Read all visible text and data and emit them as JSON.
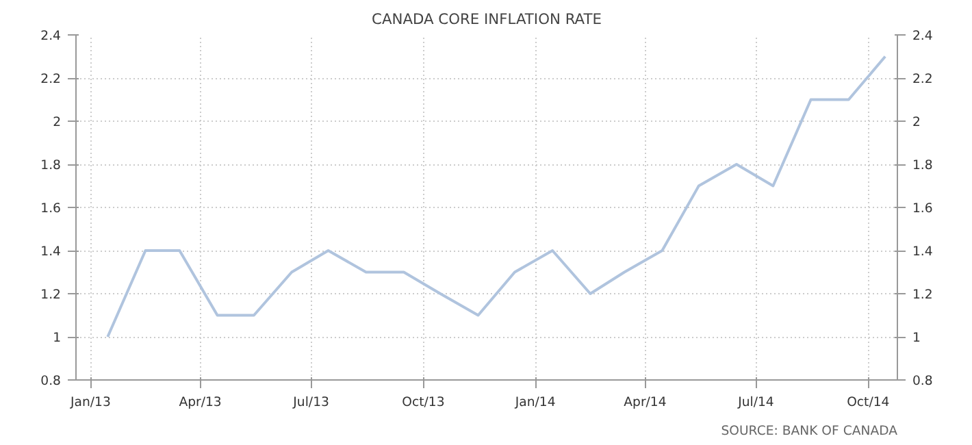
{
  "chart_data": {
    "type": "line",
    "title": "CANADA CORE INFLATION RATE",
    "annotations": [
      "SOURCE: BANK OF CANADA"
    ],
    "x": [
      "2013-01-15",
      "2013-02-15",
      "2013-03-15",
      "2013-04-15",
      "2013-05-15",
      "2013-06-15",
      "2013-07-15",
      "2013-08-15",
      "2013-09-15",
      "2013-10-15",
      "2013-11-15",
      "2013-12-15",
      "2014-01-15",
      "2014-02-15",
      "2014-03-15",
      "2014-04-15",
      "2014-05-15",
      "2014-06-15",
      "2014-07-15",
      "2014-08-15",
      "2014-09-15",
      "2014-10-15"
    ],
    "series": [
      {
        "color": "#b0c4de",
        "values": [
          1.0,
          1.4,
          1.4,
          1.1,
          1.1,
          1.3,
          1.4,
          1.3,
          1.3,
          1.2,
          1.1,
          1.3,
          1.4,
          1.2,
          1.3,
          1.4,
          1.7,
          1.8,
          1.7,
          2.1,
          2.1,
          2.3
        ]
      }
    ],
    "xlim": [
      "2012-12-20",
      "2014-10-25"
    ],
    "xticks": [
      {
        "value": "2013-01-01",
        "label": "Jan/13"
      },
      {
        "value": "2013-04-01",
        "label": "Apr/13"
      },
      {
        "value": "2013-07-01",
        "label": "Jul/13"
      },
      {
        "value": "2013-10-01",
        "label": "Oct/13"
      },
      {
        "value": "2014-01-01",
        "label": "Jan/14"
      },
      {
        "value": "2014-04-01",
        "label": "Apr/14"
      },
      {
        "value": "2014-07-01",
        "label": "Jul/14"
      },
      {
        "value": "2014-10-01",
        "label": "Oct/14"
      }
    ],
    "ylim": [
      0.8,
      2.4
    ],
    "yticks": [
      0.8,
      1,
      1.2,
      1.4,
      1.6,
      1.8,
      2,
      2.2,
      2.4
    ],
    "y2lim": [
      0.8,
      2.4
    ],
    "y2ticks": [
      0.8,
      1,
      1.2,
      1.4,
      1.6,
      1.8,
      2,
      2.2,
      2.4
    ],
    "grid": true,
    "marker": "none",
    "line_style": "solid"
  }
}
